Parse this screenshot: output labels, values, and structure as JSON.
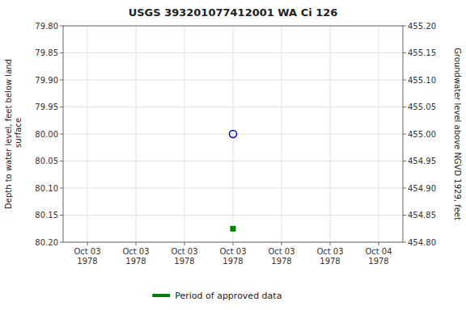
{
  "chart_data": {
    "type": "scatter",
    "title": "USGS 393201077412001 WA Ci 126",
    "ylabel": "Depth to water level, feet below land\n surface",
    "y2label": "Groundwater level above NGVD 1929, feet",
    "categories": [
      "Oct 03\n1978",
      "Oct 03\n1978",
      "Oct 03\n1978",
      "Oct 03\n1978",
      "Oct 03\n1978",
      "Oct 03\n1978",
      "Oct 04\n1978"
    ],
    "series": [
      {
        "color": "#0000cc",
        "marker": "circle-open",
        "values": [
          null,
          null,
          null,
          80.0,
          null,
          null,
          null
        ]
      },
      {
        "name": "Period of approved data",
        "color": "#008000",
        "marker": "square",
        "values": [
          null,
          null,
          null,
          80.175,
          null,
          null,
          null
        ]
      }
    ],
    "ylim": [
      80.2,
      79.8
    ],
    "yticks": [
      {
        "value": 79.8,
        "label": "79.80"
      },
      {
        "value": 79.85,
        "label": "79.85"
      },
      {
        "value": 79.9,
        "label": "79.90"
      },
      {
        "value": 79.95,
        "label": "79.95"
      },
      {
        "value": 80.0,
        "label": "80.00"
      },
      {
        "value": 80.05,
        "label": "80.05"
      },
      {
        "value": 80.1,
        "label": "80.10"
      },
      {
        "value": 80.15,
        "label": "80.15"
      },
      {
        "value": 80.2,
        "label": "80.20"
      }
    ],
    "y2lim": [
      454.8,
      455.2
    ],
    "y2ticks": [
      {
        "value": 455.2,
        "label": "455.20"
      },
      {
        "value": 455.15,
        "label": "455.15"
      },
      {
        "value": 455.1,
        "label": "455.10"
      },
      {
        "value": 455.05,
        "label": "455.05"
      },
      {
        "value": 455.0,
        "label": "455.00"
      },
      {
        "value": 454.95,
        "label": "454.95"
      },
      {
        "value": 454.9,
        "label": "454.90"
      },
      {
        "value": 454.85,
        "label": "454.85"
      },
      {
        "value": 454.8,
        "label": "454.80"
      }
    ],
    "grid": true,
    "legend": "bottom"
  }
}
